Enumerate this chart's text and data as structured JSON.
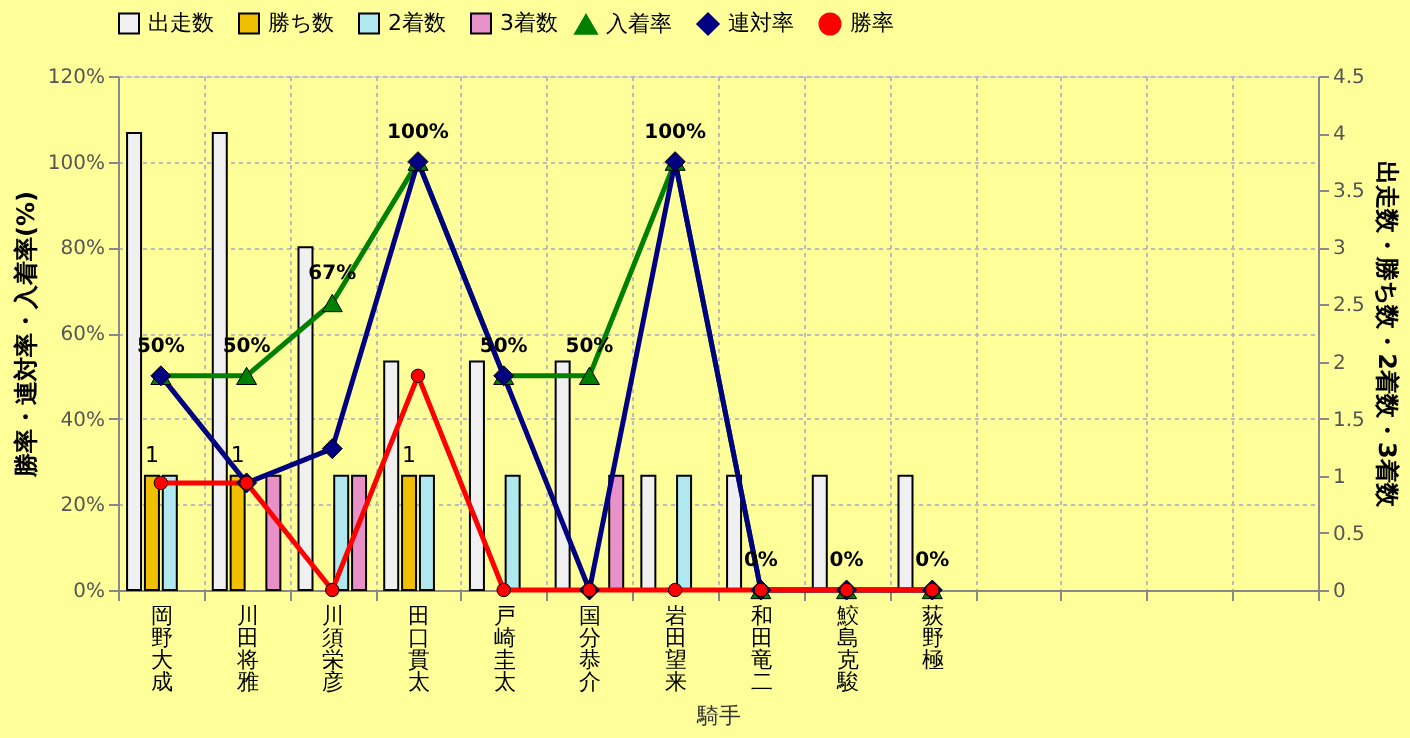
{
  "chart_data": {
    "type": "bar",
    "xlabel": "騎手",
    "ylabel": "勝率・連対率・入着率(%)",
    "y2label": "出走数・勝ち数・2着数・3着数",
    "categories": [
      "岡野大成",
      "川田将雅",
      "川須栄彦",
      "田口貫太",
      "戸崎圭太",
      "国分恭介",
      "岩田望来",
      "和田竜二",
      "鮫島克駿",
      "荻野極",
      null,
      null,
      null,
      null
    ],
    "series": [
      {
        "name": "出走数",
        "axis": "y2",
        "color": "#f0f0f0",
        "values": [
          4,
          4,
          3,
          2,
          2,
          2,
          1,
          1,
          1,
          1,
          null,
          null,
          null,
          null
        ]
      },
      {
        "name": "勝ち数",
        "axis": "y2",
        "color": "#f0c000",
        "values": [
          1,
          1,
          0,
          1,
          0,
          0,
          0,
          0,
          0,
          0,
          null,
          null,
          null,
          null
        ],
        "value_labels": [
          "1",
          "1",
          null,
          "1",
          null,
          null,
          null,
          null,
          null,
          null,
          null,
          null,
          null,
          null
        ]
      },
      {
        "name": "2着数",
        "axis": "y2",
        "color": "#b0e8f0",
        "values": [
          1,
          0,
          1,
          1,
          1,
          0,
          1,
          0,
          0,
          0,
          null,
          null,
          null,
          null
        ]
      },
      {
        "name": "3着数",
        "axis": "y2",
        "color": "#e890c8",
        "values": [
          0,
          1,
          1,
          0,
          0,
          1,
          0,
          0,
          0,
          0,
          null,
          null,
          null,
          null
        ]
      },
      {
        "name": "入着率",
        "type": "line",
        "axis": "y",
        "color": "#008000",
        "marker": "triangle",
        "values": [
          50,
          50,
          67,
          100,
          50,
          50,
          100,
          0,
          0,
          0,
          null,
          null,
          null,
          null
        ],
        "value_labels": [
          "50%",
          "50%",
          "67%",
          "100%",
          "50%",
          "50%",
          "100%",
          "0%",
          "0%",
          "0%",
          null,
          null,
          null,
          null
        ]
      },
      {
        "name": "連対率",
        "type": "line",
        "axis": "y",
        "color": "#000080",
        "marker": "diamond",
        "values": [
          50,
          25,
          33,
          100,
          50,
          0,
          100,
          0,
          0,
          0,
          null,
          null,
          null,
          null
        ]
      },
      {
        "name": "勝率",
        "type": "line",
        "axis": "y",
        "color": "#ff0000",
        "marker": "circle",
        "values": [
          25,
          25,
          0,
          50,
          0,
          0,
          0,
          0,
          0,
          0,
          null,
          null,
          null,
          null
        ]
      }
    ],
    "ylim": [
      0,
      120
    ],
    "yticks": [
      {
        "value": 0,
        "label": "0%"
      },
      {
        "value": 20,
        "label": "20%"
      },
      {
        "value": 40,
        "label": "40%"
      },
      {
        "value": 60,
        "label": "60%"
      },
      {
        "value": 80,
        "label": "80%"
      },
      {
        "value": 100,
        "label": "100%"
      },
      {
        "value": 120,
        "label": "120%"
      }
    ],
    "y2lim": [
      0,
      4.5
    ],
    "y2ticks": [
      0,
      0.5,
      1,
      1.5,
      2,
      2.5,
      3,
      3.5,
      4,
      4.5
    ],
    "grid": true,
    "legend": "top",
    "line_style": "solid"
  }
}
